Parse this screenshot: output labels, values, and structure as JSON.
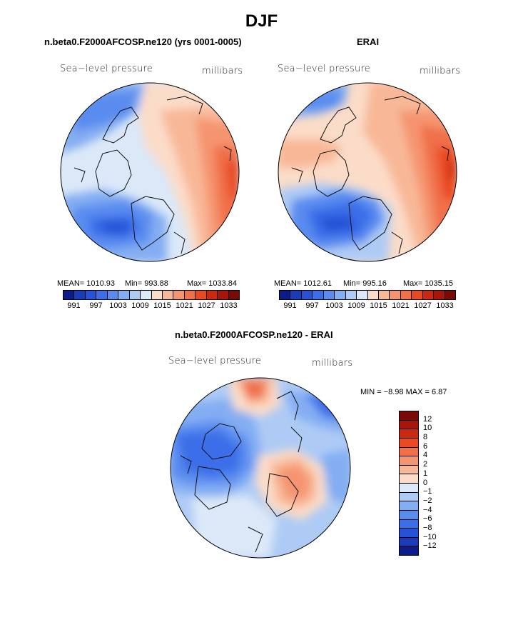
{
  "title": "DJF",
  "panel1": {
    "title": "n.beta0.F2000AFCOSP.ne120 (yrs 0001-0005)",
    "label_left": "Sea−level pressure",
    "label_right": "millibars",
    "mean": "MEAN=  1010.93",
    "min": "Min=  993.88",
    "max": "Max=  1033.84"
  },
  "panel2": {
    "title": "ERAI",
    "label_left": "Sea−level pressure",
    "label_right": "millibars",
    "mean": "MEAN=  1012.61",
    "min": "Min=  995.16",
    "max": "Max=  1035.15"
  },
  "panel3": {
    "title": "n.beta0.F2000AFCOSP.ne120 - ERAI",
    "label_left": "Sea−level pressure",
    "label_right": "millibars",
    "minmax": "MIN =   −8.98  MAX =     6.87"
  },
  "colorbar_top": {
    "ticks": [
      "991",
      "997",
      "1003",
      "1009",
      "1015",
      "1021",
      "1027",
      "1033"
    ],
    "colors": [
      "#0b1c8a",
      "#1a3cb8",
      "#2552d6",
      "#3b6ee8",
      "#5a8cf0",
      "#84aef2",
      "#aecbf5",
      "#dbe8f8",
      "#fbdcc8",
      "#f8b898",
      "#f59470",
      "#f07048",
      "#e84a24",
      "#cc2a10",
      "#a8160a",
      "#7a0a05"
    ]
  },
  "colorbar_diff": {
    "ticks": [
      "12",
      "10",
      "8",
      "6",
      "4",
      "2",
      "1",
      "0",
      "−1",
      "−2",
      "−4",
      "−6",
      "−8",
      "−10",
      "−12"
    ],
    "colors": [
      "#7a0a05",
      "#a8160a",
      "#cc2a10",
      "#e84a24",
      "#f07048",
      "#f59470",
      "#f8b898",
      "#fbdcc8",
      "#dbe8f8",
      "#aecbf5",
      "#84aef2",
      "#5a8cf0",
      "#3b6ee8",
      "#2552d6",
      "#1a3cb8",
      "#0b1c8a"
    ]
  }
}
